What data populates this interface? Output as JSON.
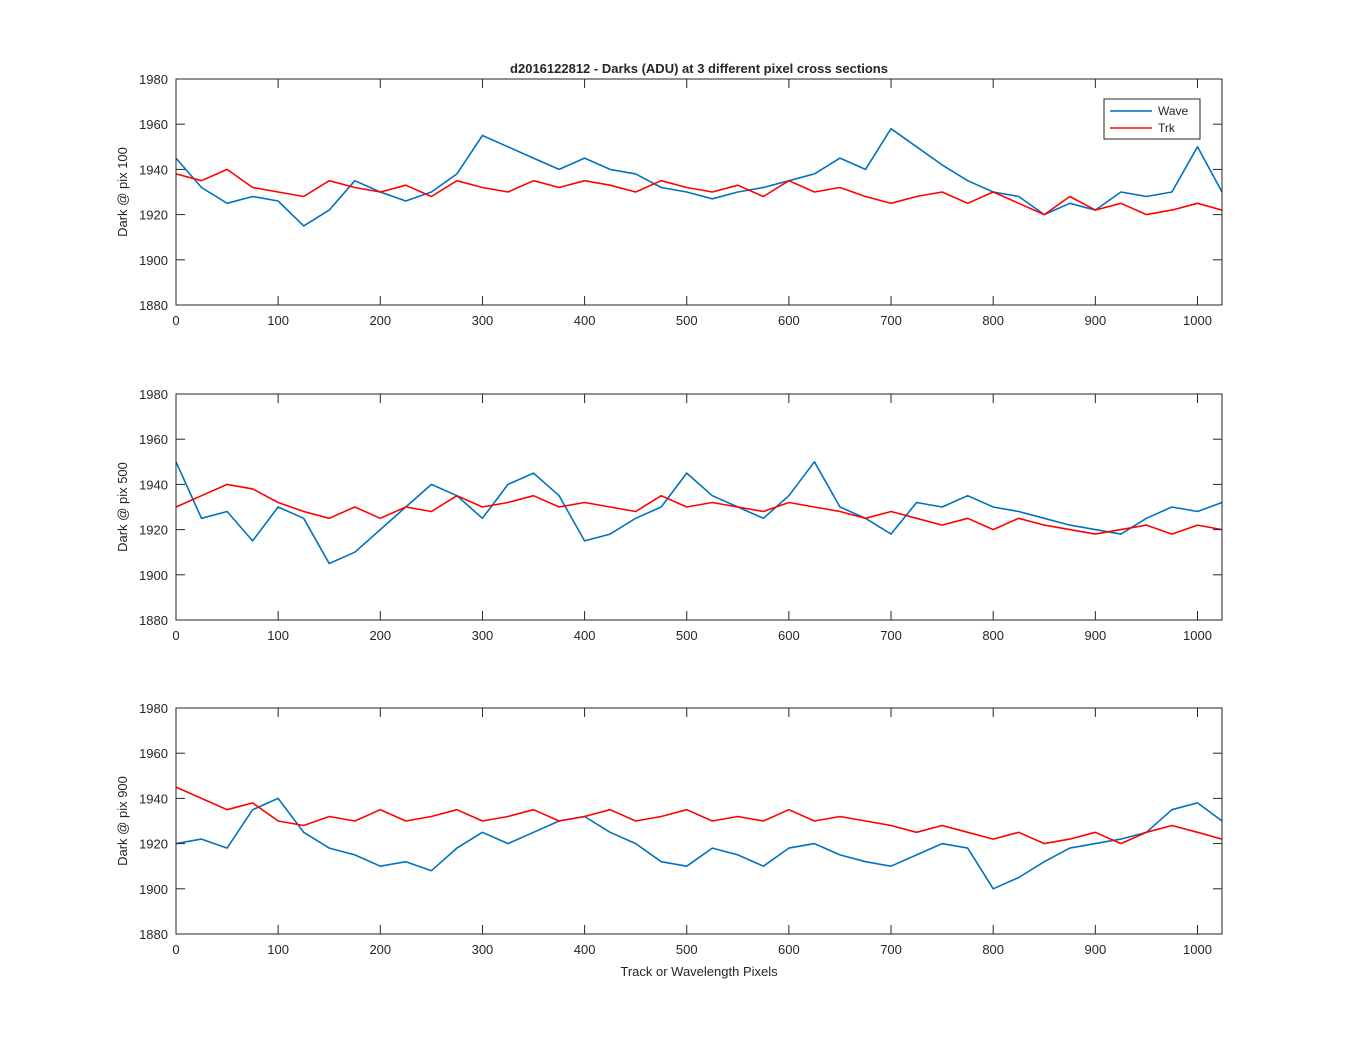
{
  "chart_data": {
    "type": "line",
    "title": "d2016122812 - Darks (ADU) at 3 different pixel cross sections",
    "xlabel": "Track or Wavelength Pixels",
    "xlim": [
      0,
      1024
    ],
    "ylim": [
      1880,
      1980
    ],
    "x_ticks": [
      0,
      100,
      200,
      300,
      400,
      500,
      600,
      700,
      800,
      900,
      1000
    ],
    "y_ticks": [
      1880,
      1900,
      1920,
      1940,
      1960,
      1980
    ],
    "legend": {
      "placement": "top-right",
      "entries": [
        {
          "name": "Wave",
          "color": "#0072BD"
        },
        {
          "name": "Trk",
          "color": "#FF0000"
        }
      ]
    },
    "panels": [
      {
        "ylabel": "Dark @ pix 100",
        "series": [
          {
            "name": "Wave",
            "color": "#0072BD",
            "x": [
              0,
              25,
              50,
              75,
              100,
              125,
              150,
              175,
              200,
              225,
              250,
              275,
              300,
              325,
              350,
              375,
              400,
              425,
              450,
              475,
              500,
              525,
              550,
              575,
              600,
              625,
              650,
              675,
              700,
              725,
              750,
              775,
              800,
              825,
              850,
              875,
              900,
              925,
              950,
              975,
              1000,
              1024
            ],
            "values": [
              1945,
              1932,
              1925,
              1928,
              1926,
              1915,
              1922,
              1935,
              1930,
              1926,
              1930,
              1938,
              1955,
              1950,
              1945,
              1940,
              1945,
              1940,
              1938,
              1932,
              1930,
              1927,
              1930,
              1932,
              1935,
              1938,
              1945,
              1940,
              1958,
              1950,
              1942,
              1935,
              1930,
              1928,
              1920,
              1925,
              1922,
              1930,
              1928,
              1930,
              1950,
              1930
            ]
          },
          {
            "name": "Trk",
            "color": "#FF0000",
            "x": [
              0,
              25,
              50,
              75,
              100,
              125,
              150,
              175,
              200,
              225,
              250,
              275,
              300,
              325,
              350,
              375,
              400,
              425,
              450,
              475,
              500,
              525,
              550,
              575,
              600,
              625,
              650,
              675,
              700,
              725,
              750,
              775,
              800,
              825,
              850,
              875,
              900,
              925,
              950,
              975,
              1000,
              1024
            ],
            "values": [
              1938,
              1935,
              1940,
              1932,
              1930,
              1928,
              1935,
              1932,
              1930,
              1933,
              1928,
              1935,
              1932,
              1930,
              1935,
              1932,
              1935,
              1933,
              1930,
              1935,
              1932,
              1930,
              1933,
              1928,
              1935,
              1930,
              1932,
              1928,
              1925,
              1928,
              1930,
              1925,
              1930,
              1925,
              1920,
              1928,
              1922,
              1925,
              1920,
              1922,
              1925,
              1922
            ]
          }
        ]
      },
      {
        "ylabel": "Dark @ pix 500",
        "series": [
          {
            "name": "Wave",
            "color": "#0072BD",
            "x": [
              0,
              25,
              50,
              75,
              100,
              125,
              150,
              175,
              200,
              225,
              250,
              275,
              300,
              325,
              350,
              375,
              400,
              425,
              450,
              475,
              500,
              525,
              550,
              575,
              600,
              625,
              650,
              675,
              700,
              725,
              750,
              775,
              800,
              825,
              850,
              875,
              900,
              925,
              950,
              975,
              1000,
              1024
            ],
            "values": [
              1950,
              1925,
              1928,
              1915,
              1930,
              1925,
              1905,
              1910,
              1920,
              1930,
              1940,
              1935,
              1925,
              1940,
              1945,
              1935,
              1915,
              1918,
              1925,
              1930,
              1945,
              1935,
              1930,
              1925,
              1935,
              1950,
              1930,
              1925,
              1918,
              1932,
              1930,
              1935,
              1930,
              1928,
              1925,
              1922,
              1920,
              1918,
              1925,
              1930,
              1928,
              1932
            ]
          },
          {
            "name": "Trk",
            "color": "#FF0000",
            "x": [
              0,
              25,
              50,
              75,
              100,
              125,
              150,
              175,
              200,
              225,
              250,
              275,
              300,
              325,
              350,
              375,
              400,
              425,
              450,
              475,
              500,
              525,
              550,
              575,
              600,
              625,
              650,
              675,
              700,
              725,
              750,
              775,
              800,
              825,
              850,
              875,
              900,
              925,
              950,
              975,
              1000,
              1024
            ],
            "values": [
              1930,
              1935,
              1940,
              1938,
              1932,
              1928,
              1925,
              1930,
              1925,
              1930,
              1928,
              1935,
              1930,
              1932,
              1935,
              1930,
              1932,
              1930,
              1928,
              1935,
              1930,
              1932,
              1930,
              1928,
              1932,
              1930,
              1928,
              1925,
              1928,
              1925,
              1922,
              1925,
              1920,
              1925,
              1922,
              1920,
              1918,
              1920,
              1922,
              1918,
              1922,
              1920
            ]
          }
        ]
      },
      {
        "ylabel": "Dark @ pix 900",
        "series": [
          {
            "name": "Wave",
            "color": "#0072BD",
            "x": [
              0,
              25,
              50,
              75,
              100,
              125,
              150,
              175,
              200,
              225,
              250,
              275,
              300,
              325,
              350,
              375,
              400,
              425,
              450,
              475,
              500,
              525,
              550,
              575,
              600,
              625,
              650,
              675,
              700,
              725,
              750,
              775,
              800,
              825,
              850,
              875,
              900,
              925,
              950,
              975,
              1000,
              1024
            ],
            "values": [
              1920,
              1922,
              1918,
              1935,
              1940,
              1925,
              1918,
              1915,
              1910,
              1912,
              1908,
              1918,
              1925,
              1920,
              1925,
              1930,
              1932,
              1925,
              1920,
              1912,
              1910,
              1918,
              1915,
              1910,
              1918,
              1920,
              1915,
              1912,
              1910,
              1915,
              1920,
              1918,
              1900,
              1905,
              1912,
              1918,
              1920,
              1922,
              1925,
              1935,
              1938,
              1930
            ]
          },
          {
            "name": "Trk",
            "color": "#FF0000",
            "x": [
              0,
              25,
              50,
              75,
              100,
              125,
              150,
              175,
              200,
              225,
              250,
              275,
              300,
              325,
              350,
              375,
              400,
              425,
              450,
              475,
              500,
              525,
              550,
              575,
              600,
              625,
              650,
              675,
              700,
              725,
              750,
              775,
              800,
              825,
              850,
              875,
              900,
              925,
              950,
              975,
              1000,
              1024
            ],
            "values": [
              1945,
              1940,
              1935,
              1938,
              1930,
              1928,
              1932,
              1930,
              1935,
              1930,
              1932,
              1935,
              1930,
              1932,
              1935,
              1930,
              1932,
              1935,
              1930,
              1932,
              1935,
              1930,
              1932,
              1930,
              1935,
              1930,
              1932,
              1930,
              1928,
              1925,
              1928,
              1925,
              1922,
              1925,
              1920,
              1922,
              1925,
              1920,
              1925,
              1928,
              1925,
              1922
            ]
          }
        ]
      }
    ]
  }
}
